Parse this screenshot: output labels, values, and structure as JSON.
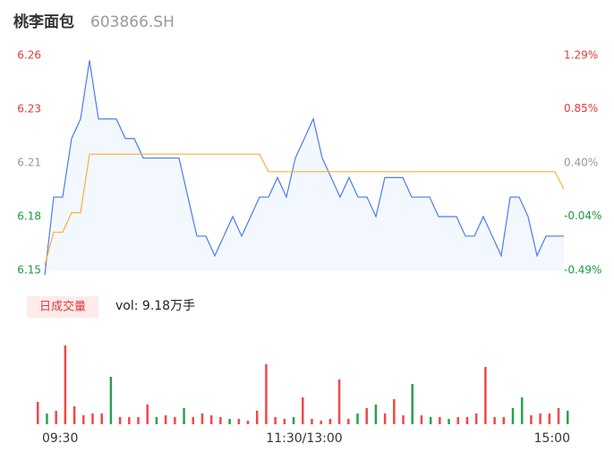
{
  "header": {
    "name": "桃李面包",
    "code": "603866.SH"
  },
  "chart_data": [
    {
      "type": "line",
      "ylim": [
        6.1525,
        6.2625
      ],
      "yticks": [
        {
          "value": 6.2625,
          "label": "6.26"
        },
        {
          "value": 6.235,
          "label": "6.23"
        },
        {
          "value": 6.2075,
          "label": "6.21"
        },
        {
          "value": 6.18,
          "label": "6.18"
        },
        {
          "value": 6.1525,
          "label": "6.15"
        }
      ],
      "ytick_colors": [
        "#e8363a",
        "#e8363a",
        "#999999",
        "#1a9a3c",
        "#1a9a3c"
      ],
      "y2lim": [
        -0.49,
        1.29
      ],
      "y2ticks": [
        {
          "value": 1.29,
          "label": "1.29%"
        },
        {
          "value": 0.85,
          "label": "0.85%"
        },
        {
          "value": 0.4,
          "label": "0.40%"
        },
        {
          "value": -0.04,
          "label": "-0.04%"
        },
        {
          "value": -0.49,
          "label": "-0.49%"
        }
      ],
      "x_labels": [
        "09:30",
        "11:30/13:00",
        "15:00"
      ],
      "series": [
        {
          "color": "#4a7ee8",
          "values": [
            6.15,
            6.19,
            6.19,
            6.22,
            6.23,
            6.26,
            6.23,
            6.23,
            6.23,
            6.22,
            6.22,
            6.21,
            6.21,
            6.21,
            6.21,
            6.21,
            6.19,
            6.17,
            6.17,
            6.16,
            6.17,
            6.18,
            6.17,
            6.18,
            6.19,
            6.19,
            6.2,
            6.19,
            6.21,
            6.22,
            6.23,
            6.21,
            6.2,
            6.19,
            6.2,
            6.19,
            6.19,
            6.18,
            6.2,
            6.2,
            6.2,
            6.19,
            6.19,
            6.19,
            6.18,
            6.18,
            6.18,
            6.17,
            6.17,
            6.18,
            6.17,
            6.16,
            6.19,
            6.19,
            6.18,
            6.16,
            6.17,
            6.17,
            6.17
          ]
        },
        {
          "color": "#f2b33d",
          "values": [
            6.155,
            6.172,
            6.172,
            6.182,
            6.182,
            6.212,
            6.212,
            6.212,
            6.212,
            6.212,
            6.212,
            6.212,
            6.212,
            6.212,
            6.212,
            6.212,
            6.212,
            6.212,
            6.212,
            6.212,
            6.212,
            6.212,
            6.212,
            6.212,
            6.212,
            6.203,
            6.203,
            6.203,
            6.203,
            6.203,
            6.203,
            6.203,
            6.203,
            6.203,
            6.203,
            6.203,
            6.203,
            6.203,
            6.203,
            6.203,
            6.203,
            6.203,
            6.203,
            6.203,
            6.203,
            6.203,
            6.203,
            6.203,
            6.203,
            6.203,
            6.203,
            6.203,
            6.203,
            6.203,
            6.203,
            6.203,
            6.203,
            6.203,
            6.194
          ]
        }
      ]
    },
    {
      "type": "bar",
      "legend": "日成交量",
      "total": "vol: 9.18万手",
      "ylim": [
        0,
        100
      ],
      "up_color": "#f04848",
      "down_color": "#2aa050",
      "values": [
        25,
        12,
        15,
        88,
        20,
        10,
        12,
        12,
        53,
        8,
        8,
        8,
        22,
        8,
        10,
        8,
        18,
        8,
        12,
        10,
        8,
        6,
        6,
        4,
        15,
        67,
        8,
        6,
        8,
        30,
        6,
        4,
        6,
        50,
        6,
        12,
        18,
        22,
        12,
        28,
        10,
        45,
        10,
        8,
        8,
        6,
        8,
        8,
        12,
        64,
        8,
        8,
        18,
        30,
        10,
        12,
        12,
        18,
        15
      ],
      "up": [
        true,
        false,
        true,
        true,
        true,
        true,
        true,
        true,
        false,
        true,
        true,
        true,
        true,
        false,
        true,
        true,
        false,
        true,
        true,
        true,
        true,
        false,
        true,
        true,
        true,
        true,
        true,
        true,
        false,
        true,
        true,
        true,
        true,
        true,
        true,
        false,
        true,
        false,
        true,
        true,
        true,
        false,
        true,
        false,
        true,
        false,
        true,
        true,
        true,
        true,
        true,
        true,
        false,
        false,
        true,
        true,
        true,
        true,
        false
      ]
    }
  ]
}
